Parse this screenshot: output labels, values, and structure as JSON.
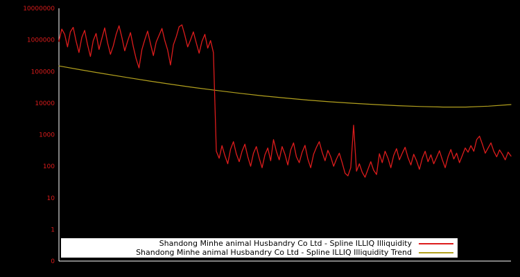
{
  "chart": {
    "background": "#000000",
    "axis_color": "#ffffff",
    "tick_label_color": "#dd1c1c"
  },
  "chart_data": {
    "type": "line",
    "title": "",
    "xlabel": "",
    "ylabel": "",
    "x_axis": {
      "tick_labels_visible": false
    },
    "y_axis": {
      "scale": "log",
      "tick_labels": [
        "10000000",
        "1000000",
        "100000",
        "10000",
        "1000",
        "100",
        "10",
        "1",
        "0"
      ],
      "range_top": 10000000,
      "range_bottom": 0
    },
    "legend": {
      "position": "bottom-center",
      "background": "#ffffff"
    },
    "series": [
      {
        "name": "Shandong Minhe animal Husbandry Co Ltd - Spline ILLIQ Illiquidity",
        "color": "#dd1c1c",
        "values": [
          900000,
          2200000,
          1500000,
          600000,
          1800000,
          2500000,
          900000,
          400000,
          1200000,
          2000000,
          700000,
          300000,
          950000,
          1600000,
          500000,
          1100000,
          2400000,
          800000,
          350000,
          650000,
          1500000,
          2800000,
          1200000,
          450000,
          900000,
          1700000,
          600000,
          250000,
          130000,
          500000,
          1000000,
          1900000,
          750000,
          320000,
          850000,
          1400000,
          2300000,
          950000,
          480000,
          160000,
          700000,
          1250000,
          2600000,
          3000000,
          1400000,
          600000,
          1000000,
          1800000,
          800000,
          380000,
          900000,
          1500000,
          550000,
          950000,
          400000,
          300,
          180,
          450,
          220,
          120,
          350,
          600,
          250,
          140,
          300,
          500,
          200,
          100,
          260,
          420,
          180,
          90,
          230,
          380,
          150,
          700,
          300,
          160,
          420,
          240,
          110,
          330,
          550,
          200,
          130,
          280,
          460,
          170,
          90,
          240,
          400,
          600,
          280,
          150,
          320,
          200,
          100,
          170,
          260,
          130,
          60,
          50,
          90,
          2000,
          70,
          120,
          65,
          45,
          80,
          140,
          75,
          55,
          250,
          130,
          300,
          180,
          90,
          220,
          360,
          160,
          260,
          400,
          190,
          110,
          240,
          150,
          80,
          180,
          300,
          140,
          230,
          120,
          190,
          310,
          160,
          90,
          200,
          340,
          170,
          260,
          130,
          220,
          380,
          280,
          450,
          300,
          700,
          900,
          500,
          260,
          380,
          550,
          300,
          200,
          330,
          240,
          160,
          280,
          210
        ]
      },
      {
        "name": "Shandong Minhe animal Husbandry Co Ltd - Spline ILLIQ Illiquidity Trend",
        "color": "#b3a11e",
        "values": [
          150000,
          112000,
          85000,
          65000,
          50000,
          39000,
          31000,
          25000,
          20500,
          17000,
          14500,
          12500,
          11000,
          9900,
          9000,
          8300,
          7800,
          7500,
          7500,
          8000,
          9000
        ]
      }
    ]
  }
}
